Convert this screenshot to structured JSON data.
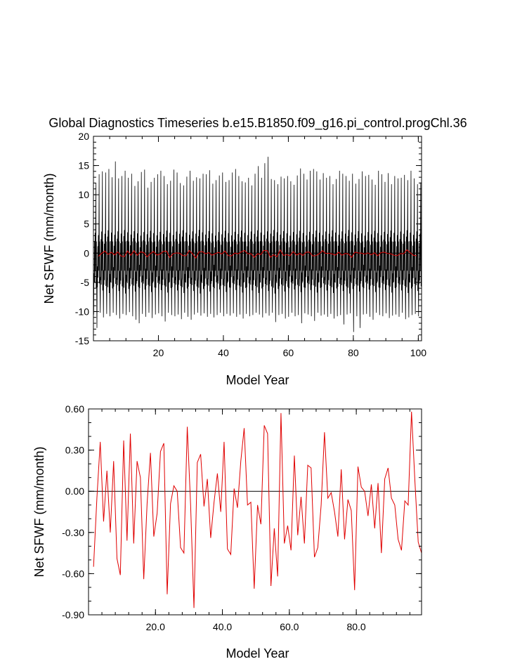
{
  "figure": {
    "title": "Global Diagnostics Timeseries b.e15.B1850.f09_g16.pi_control.progChl.36"
  },
  "chart_data": [
    {
      "type": "line",
      "title": "Global Diagnostics Timeseries b.e15.B1850.f09_g16.pi_control.progChl.36",
      "xlabel": "Model Year",
      "ylabel": "Net SFWF (mm/month)",
      "xlim": [
        0,
        101
      ],
      "ylim": [
        -15,
        20
      ],
      "x_ticks": [
        20,
        40,
        60,
        80,
        100
      ],
      "x_tick_labels": [
        "20",
        "40",
        "60",
        "80",
        "100"
      ],
      "y_ticks": [
        -15,
        -10,
        -5,
        0,
        5,
        10,
        15,
        20
      ],
      "y_tick_labels": [
        "-15",
        "-10",
        "-5",
        "0",
        "5",
        "10",
        "15",
        "20"
      ],
      "zero_line": true,
      "colors": {
        "monthly": "#000000",
        "annual": "#e00000"
      },
      "monthly_annual_peaks": [
        12,
        13.5,
        14,
        13.8,
        14.4,
        13,
        15.7,
        12.8,
        13.2,
        14.1,
        12.9,
        13.6,
        11.5,
        12.3,
        13.9,
        14.3,
        11.2,
        12.2,
        12.9,
        13.5,
        14.1,
        13.2,
        11.8,
        12.4,
        14.3,
        13.8,
        12,
        11.6,
        13.1,
        14.1,
        12.4,
        13,
        12.8,
        13.6,
        13.5,
        14.2,
        11.9,
        12.5,
        13.3,
        13.8,
        12.2,
        12.5,
        13.8,
        14.4,
        13.2,
        12.3,
        12.1,
        12.9,
        11.6,
        13.6,
        14.9,
        12.9,
        15.4,
        16.5,
        12.7,
        12.5,
        11.8,
        13.1,
        12.8,
        13.2,
        12.3,
        11.7,
        13.3,
        14.5,
        13.6,
        12.6,
        14.1,
        14.4,
        14,
        12.6,
        13.7,
        12.9,
        13.2,
        11.8,
        12.7,
        14.1,
        13.6,
        13.2,
        12.4,
        13.6,
        11.9,
        12.7,
        14,
        13.2,
        13.4,
        12.6,
        11.7,
        14.1,
        13.5,
        12.2,
        13.7,
        11.8,
        13.2,
        12.8,
        12.9,
        13.4,
        12.5,
        14.1,
        12.8,
        11.8,
        12.1
      ],
      "monthly_annual_troughs": [
        -10.5,
        -12.8,
        -10.2,
        -11,
        -10.4,
        -10.8,
        -10.2,
        -10.6,
        -11.2,
        -10.4,
        -10.6,
        -10.1,
        -10.8,
        -11.4,
        -12,
        -10.4,
        -10.9,
        -10.2,
        -11.1,
        -10.5,
        -10.3,
        -10.8,
        -11.7,
        -10.2,
        -10.6,
        -10.8,
        -10.5,
        -11.3,
        -10.2,
        -10.9,
        -11.4,
        -10.5,
        -10.2,
        -10.7,
        -10.3,
        -10.9,
        -10.4,
        -11,
        -10.6,
        -10.2,
        -10.8,
        -10.4,
        -10.7,
        -10.3,
        -10.9,
        -10.5,
        -11.2,
        -10.4,
        -10.8,
        -10.6,
        -10.2,
        -10.5,
        -11,
        -10.3,
        -10.7,
        -10.2,
        -11.8,
        -10.6,
        -10.4,
        -11.2,
        -10.9,
        -10.2,
        -10.8,
        -10.6,
        -12,
        -10.3,
        -10.5,
        -10.8,
        -11.6,
        -10.2,
        -10.7,
        -10.5,
        -10.9,
        -10.4,
        -11.2,
        -10.8,
        -10.6,
        -12.2,
        -10.5,
        -10.3,
        -13.5,
        -10.8,
        -12.8,
        -10.5,
        -10.4,
        -10.9,
        -11.4,
        -10.2,
        -10.6,
        -10.8,
        -10.3,
        -11.1,
        -10.7,
        -10.5,
        -10.9,
        -10.2,
        -11.3,
        -11,
        -10.6,
        -10.4,
        -10.8
      ],
      "annual_series_name": "",
      "annual_mean": {
        "x": [
          1.5,
          2.5,
          3.5,
          4.5,
          5.5,
          6.5,
          7.5,
          8.5,
          9.5,
          10.5,
          11.5,
          12.5,
          13.5,
          14.5,
          15.5,
          16.5,
          17.5,
          18.5,
          19.5,
          20.5,
          21.5,
          22.5,
          23.5,
          24.5,
          25.5,
          26.5,
          27.5,
          28.5,
          29.5,
          30.5,
          31.5,
          32.5,
          33.5,
          34.5,
          35.5,
          36.5,
          37.5,
          38.5,
          39.5,
          40.5,
          41.5,
          42.5,
          43.5,
          44.5,
          45.5,
          46.5,
          47.5,
          48.5,
          49.5,
          50.5,
          51.5,
          52.5,
          53.5,
          54.5,
          55.5,
          56.5,
          57.5,
          58.5,
          59.5,
          60.5,
          61.5,
          62.5,
          63.5,
          64.5,
          65.5,
          66.5,
          67.5,
          68.5,
          69.5,
          70.5,
          71.5,
          72.5,
          73.5,
          74.5,
          75.5,
          76.5,
          77.5,
          78.5,
          79.5,
          80.5,
          81.5,
          82.5,
          83.5,
          84.5,
          85.5,
          86.5,
          87.5,
          88.5,
          89.5,
          90.5,
          91.5,
          92.5,
          93.5,
          94.5,
          95.5,
          96.5,
          97.5,
          98.5,
          99.5
        ],
        "y": [
          -0.55,
          -0.05,
          0.36,
          -0.22,
          0.15,
          -0.3,
          0.22,
          -0.49,
          -0.61,
          0.37,
          -0.36,
          0.42,
          -0.38,
          0.22,
          0.1,
          -0.64,
          -0.09,
          0.28,
          -0.33,
          -0.16,
          0.29,
          0.35,
          -0.75,
          -0.09,
          0.04,
          0.0,
          -0.41,
          -0.45,
          0.47,
          -0.1,
          -0.85,
          0.21,
          0.27,
          -0.11,
          0.09,
          -0.34,
          -0.08,
          0.13,
          -0.15,
          0.36,
          -0.42,
          -0.46,
          0.02,
          -0.12,
          0.22,
          0.46,
          -0.1,
          -0.08,
          -0.71,
          -0.1,
          -0.24,
          0.48,
          0.42,
          -0.69,
          -0.27,
          -0.62,
          0.57,
          -0.38,
          -0.25,
          -0.43,
          0.26,
          -0.32,
          -0.04,
          -0.38,
          0.19,
          0.17,
          -0.48,
          -0.41,
          -0.1,
          0.43,
          -0.05,
          -0.01,
          -0.15,
          -0.33,
          0.16,
          -0.35,
          -0.06,
          -0.14,
          -0.72,
          0.18,
          0.03,
          0.0,
          -0.18,
          0.05,
          -0.27,
          0.06,
          -0.45,
          0.09,
          0.17,
          -0.05,
          -0.1,
          -0.35,
          -0.43,
          -0.07,
          -0.1,
          0.58,
          0.08,
          -0.37,
          -0.45
        ]
      }
    },
    {
      "type": "line",
      "title": "",
      "xlabel": "Model Year",
      "ylabel": "Net SFWF (mm/month)",
      "xlim": [
        0,
        99.5
      ],
      "ylim": [
        -0.9,
        0.6
      ],
      "x_ticks": [
        20,
        40,
        60,
        80
      ],
      "x_tick_labels": [
        "20.0",
        "40.0",
        "60.0",
        "80.0"
      ],
      "y_ticks": [
        -0.9,
        -0.6,
        -0.3,
        0.0,
        0.3,
        0.6
      ],
      "y_tick_labels": [
        "-0.90",
        "-0.60",
        "-0.30",
        "0.00",
        "0.30",
        "0.60"
      ],
      "zero_line": true,
      "colors": {
        "line": "#e00000"
      },
      "series": [
        {
          "name": "",
          "x": [
            1.5,
            2.5,
            3.5,
            4.5,
            5.5,
            6.5,
            7.5,
            8.5,
            9.5,
            10.5,
            11.5,
            12.5,
            13.5,
            14.5,
            15.5,
            16.5,
            17.5,
            18.5,
            19.5,
            20.5,
            21.5,
            22.5,
            23.5,
            24.5,
            25.5,
            26.5,
            27.5,
            28.5,
            29.5,
            30.5,
            31.5,
            32.5,
            33.5,
            34.5,
            35.5,
            36.5,
            37.5,
            38.5,
            39.5,
            40.5,
            41.5,
            42.5,
            43.5,
            44.5,
            45.5,
            46.5,
            47.5,
            48.5,
            49.5,
            50.5,
            51.5,
            52.5,
            53.5,
            54.5,
            55.5,
            56.5,
            57.5,
            58.5,
            59.5,
            60.5,
            61.5,
            62.5,
            63.5,
            64.5,
            65.5,
            66.5,
            67.5,
            68.5,
            69.5,
            70.5,
            71.5,
            72.5,
            73.5,
            74.5,
            75.5,
            76.5,
            77.5,
            78.5,
            79.5,
            80.5,
            81.5,
            82.5,
            83.5,
            84.5,
            85.5,
            86.5,
            87.5,
            88.5,
            89.5,
            90.5,
            91.5,
            92.5,
            93.5,
            94.5,
            95.5,
            96.5,
            97.5,
            98.5,
            99.5
          ],
          "y": [
            -0.55,
            -0.05,
            0.36,
            -0.22,
            0.15,
            -0.3,
            0.22,
            -0.49,
            -0.61,
            0.37,
            -0.36,
            0.42,
            -0.38,
            0.22,
            0.1,
            -0.64,
            -0.09,
            0.28,
            -0.33,
            -0.16,
            0.29,
            0.35,
            -0.75,
            -0.09,
            0.04,
            0.0,
            -0.41,
            -0.45,
            0.47,
            -0.1,
            -0.85,
            0.21,
            0.27,
            -0.11,
            0.09,
            -0.34,
            -0.08,
            0.13,
            -0.15,
            0.36,
            -0.42,
            -0.46,
            0.02,
            -0.12,
            0.22,
            0.46,
            -0.1,
            -0.08,
            -0.71,
            -0.1,
            -0.24,
            0.48,
            0.42,
            -0.69,
            -0.27,
            -0.62,
            0.57,
            -0.38,
            -0.25,
            -0.43,
            0.26,
            -0.32,
            -0.04,
            -0.38,
            0.19,
            0.17,
            -0.48,
            -0.41,
            -0.1,
            0.43,
            -0.05,
            -0.01,
            -0.15,
            -0.33,
            0.16,
            -0.35,
            -0.06,
            -0.14,
            -0.72,
            0.18,
            0.03,
            0.0,
            -0.18,
            0.05,
            -0.27,
            0.06,
            -0.45,
            0.09,
            0.17,
            -0.05,
            -0.1,
            -0.35,
            -0.43,
            -0.07,
            -0.1,
            0.58,
            0.08,
            -0.37,
            -0.45
          ]
        }
      ]
    }
  ]
}
